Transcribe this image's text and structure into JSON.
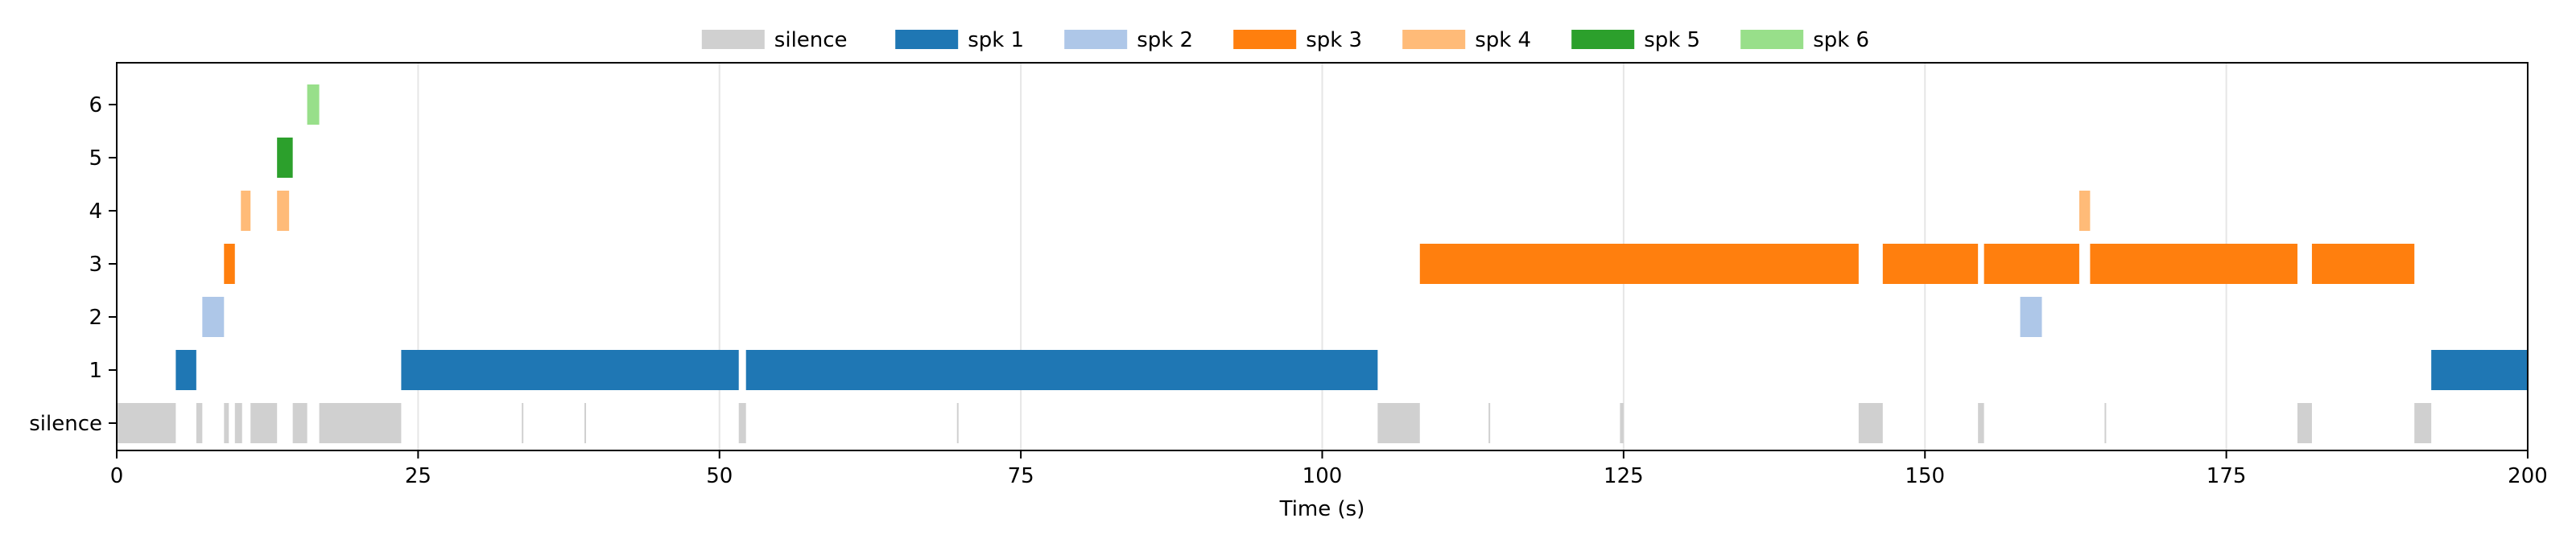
{
  "chart_data": {
    "type": "timeline",
    "xlabel": "Time (s)",
    "xlim": [
      0,
      200
    ],
    "x_ticks": [
      0,
      25,
      50,
      75,
      100,
      125,
      150,
      175,
      200
    ],
    "grid_x": true,
    "legend_position": "top-center",
    "rows": [
      "silence",
      "1",
      "2",
      "3",
      "4",
      "5",
      "6"
    ],
    "series": [
      {
        "name": "silence",
        "row": "silence",
        "color": "#d0d0d0",
        "segments": [
          [
            0,
            4.9
          ],
          [
            6.6,
            7.1
          ],
          [
            8.9,
            9.3
          ],
          [
            9.8,
            10.4
          ],
          [
            11.1,
            13.3
          ],
          [
            14.6,
            15.8
          ],
          [
            16.8,
            23.6
          ],
          [
            33.6,
            33.7
          ],
          [
            38.8,
            38.9
          ],
          [
            51.6,
            52.2
          ],
          [
            69.7,
            69.8
          ],
          [
            104.6,
            108.1
          ],
          [
            113.8,
            113.9
          ],
          [
            124.7,
            125.0
          ],
          [
            144.5,
            146.5
          ],
          [
            154.4,
            154.9
          ],
          [
            164.9,
            165.0
          ],
          [
            180.9,
            182.1
          ],
          [
            190.6,
            192.0
          ]
        ]
      },
      {
        "name": "spk 1",
        "row": "1",
        "color": "#1f77b4",
        "segments": [
          [
            4.9,
            6.6
          ],
          [
            23.6,
            51.6
          ],
          [
            52.2,
            104.6
          ],
          [
            192.0,
            200.0
          ]
        ]
      },
      {
        "name": "spk 2",
        "row": "2",
        "color": "#aec7e8",
        "segments": [
          [
            7.1,
            8.9
          ],
          [
            157.9,
            159.7
          ]
        ]
      },
      {
        "name": "spk 3",
        "row": "3",
        "color": "#ff7f0e",
        "segments": [
          [
            8.9,
            9.8
          ],
          [
            108.1,
            144.5
          ],
          [
            146.5,
            154.4
          ],
          [
            154.9,
            162.8
          ],
          [
            163.7,
            180.9
          ],
          [
            182.1,
            190.6
          ]
        ]
      },
      {
        "name": "spk 4",
        "row": "4",
        "color": "#ffbb78",
        "segments": [
          [
            10.3,
            11.1
          ],
          [
            13.3,
            14.3
          ],
          [
            162.8,
            163.7
          ]
        ]
      },
      {
        "name": "spk 5",
        "row": "5",
        "color": "#2ca02c",
        "segments": [
          [
            13.3,
            14.6
          ]
        ]
      },
      {
        "name": "spk 6",
        "row": "6",
        "color": "#98df8a",
        "segments": [
          [
            15.8,
            16.8
          ]
        ]
      }
    ]
  }
}
